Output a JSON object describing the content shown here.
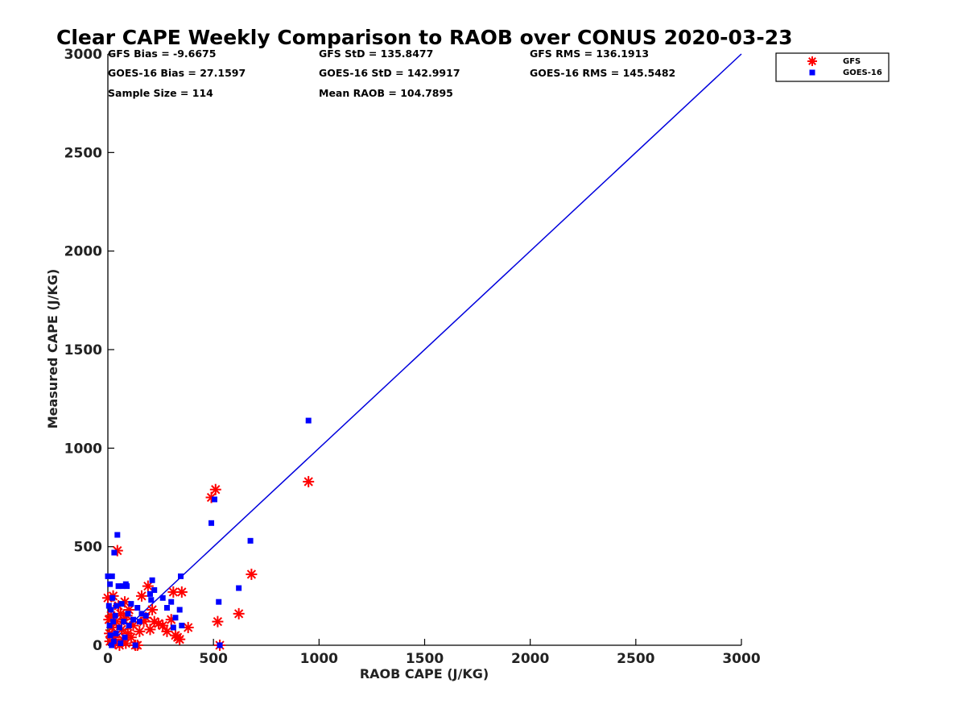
{
  "chart_data": {
    "type": "scatter",
    "title": "Clear CAPE Weekly Comparison to RAOB over CONUS 2020-03-23",
    "xlabel": "RAOB CAPE (J/KG)",
    "ylabel": "Measured CAPE (J/KG)",
    "xlim": [
      0,
      3000
    ],
    "ylim": [
      0,
      3000
    ],
    "xticks": [
      "0",
      "500",
      "1000",
      "1500",
      "2000",
      "2500",
      "3000"
    ],
    "yticks": [
      "0",
      "500",
      "1000",
      "1500",
      "2000",
      "2500",
      "3000"
    ],
    "grid": false,
    "legend_position": "top-right",
    "stats": [
      [
        "GFS Bias = -9.6675",
        "GFS StD = 135.8477",
        "GFS RMS = 136.1913"
      ],
      [
        "GOES-16 Bias = 27.1597",
        "GOES-16 StD = 142.9917",
        "GOES-16 RMS = 145.5482"
      ],
      [
        "Sample Size = 114",
        "Mean RAOB = 104.7895",
        ""
      ]
    ],
    "reference_line": {
      "x": [
        0,
        3000
      ],
      "y": [
        0,
        3000
      ],
      "color": "#0000dd"
    },
    "series": [
      {
        "name": "GFS",
        "marker": "asterisk",
        "color": "#ff0000",
        "points": [
          [
            0,
            240
          ],
          [
            5,
            130
          ],
          [
            8,
            60
          ],
          [
            10,
            20
          ],
          [
            15,
            150
          ],
          [
            20,
            90
          ],
          [
            25,
            250
          ],
          [
            30,
            40
          ],
          [
            35,
            10
          ],
          [
            40,
            120
          ],
          [
            45,
            480
          ],
          [
            50,
            200
          ],
          [
            55,
            0
          ],
          [
            60,
            160
          ],
          [
            65,
            80
          ],
          [
            70,
            30
          ],
          [
            75,
            130
          ],
          [
            80,
            220
          ],
          [
            85,
            10
          ],
          [
            90,
            150
          ],
          [
            95,
            60
          ],
          [
            100,
            180
          ],
          [
            110,
            40
          ],
          [
            120,
            100
          ],
          [
            130,
            0
          ],
          [
            140,
            0
          ],
          [
            150,
            70
          ],
          [
            160,
            250
          ],
          [
            170,
            120
          ],
          [
            180,
            140
          ],
          [
            190,
            300
          ],
          [
            200,
            80
          ],
          [
            210,
            180
          ],
          [
            220,
            120
          ],
          [
            240,
            110
          ],
          [
            260,
            100
          ],
          [
            280,
            70
          ],
          [
            300,
            130
          ],
          [
            310,
            270
          ],
          [
            320,
            50
          ],
          [
            330,
            40
          ],
          [
            340,
            30
          ],
          [
            350,
            270
          ],
          [
            380,
            90
          ],
          [
            490,
            750
          ],
          [
            510,
            790
          ],
          [
            520,
            120
          ],
          [
            530,
            0
          ],
          [
            620,
            160
          ],
          [
            680,
            360
          ],
          [
            950,
            830
          ]
        ]
      },
      {
        "name": "GOES-16",
        "marker": "square",
        "color": "#0000ff",
        "points": [
          [
            0,
            350
          ],
          [
            5,
            200
          ],
          [
            8,
            100
          ],
          [
            10,
            310
          ],
          [
            12,
            50
          ],
          [
            15,
            180
          ],
          [
            18,
            0
          ],
          [
            20,
            350
          ],
          [
            22,
            240
          ],
          [
            25,
            120
          ],
          [
            28,
            20
          ],
          [
            30,
            470
          ],
          [
            35,
            150
          ],
          [
            38,
            60
          ],
          [
            40,
            200
          ],
          [
            45,
            560
          ],
          [
            50,
            300
          ],
          [
            55,
            90
          ],
          [
            60,
            10
          ],
          [
            65,
            210
          ],
          [
            70,
            300
          ],
          [
            75,
            120
          ],
          [
            80,
            40
          ],
          [
            85,
            310
          ],
          [
            90,
            300
          ],
          [
            95,
            160
          ],
          [
            100,
            100
          ],
          [
            110,
            210
          ],
          [
            120,
            130
          ],
          [
            130,
            0
          ],
          [
            140,
            190
          ],
          [
            150,
            120
          ],
          [
            160,
            160
          ],
          [
            180,
            150
          ],
          [
            200,
            260
          ],
          [
            205,
            230
          ],
          [
            210,
            330
          ],
          [
            220,
            280
          ],
          [
            260,
            240
          ],
          [
            280,
            190
          ],
          [
            300,
            220
          ],
          [
            310,
            90
          ],
          [
            320,
            140
          ],
          [
            340,
            180
          ],
          [
            345,
            350
          ],
          [
            350,
            100
          ],
          [
            490,
            620
          ],
          [
            505,
            740
          ],
          [
            525,
            220
          ],
          [
            530,
            0
          ],
          [
            620,
            290
          ],
          [
            675,
            530
          ],
          [
            950,
            1140
          ]
        ]
      }
    ]
  }
}
